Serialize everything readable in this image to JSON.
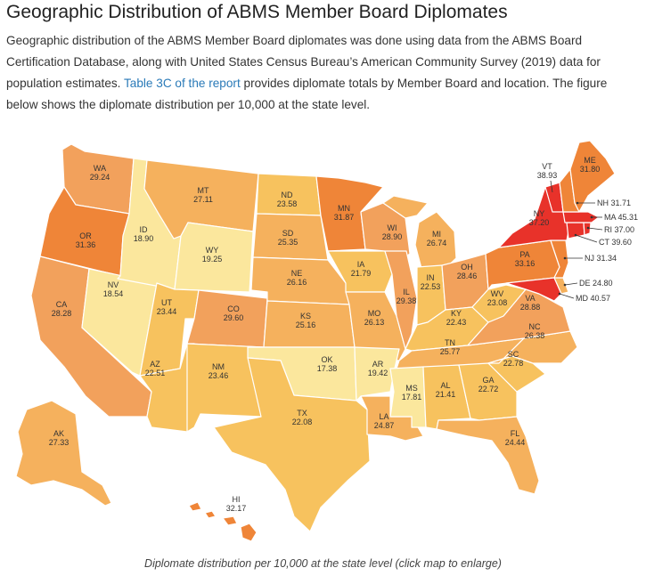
{
  "title": "Geographic Distribution of ABMS Member Board Diplomates",
  "intro": {
    "text_before_link": "Geographic distribution of the ABMS Member Board diplomates was done using data from the ABMS Board Certification Database, along with United States Census Bureau’s American Community Survey (2019) data for population estimates. ",
    "link_text": "Table 3C of the report",
    "text_after_link": " provides diplomate totals by Member Board and location. The figure below shows the diplomate distribution per 10,000 at the state level."
  },
  "caption": "Diplomate distribution per 10,000 at the state level (click map to enlarge)",
  "colors": {
    "very_high": "#e8322a",
    "high": "#ef8538",
    "mid_high": "#f2a15c",
    "mid": "#f5b15d",
    "mid_low": "#f7c25e",
    "low": "#fbe79d",
    "border": "#ffffff"
  },
  "states": {
    "WA": {
      "label": "WA",
      "value": "29.24"
    },
    "OR": {
      "label": "OR",
      "value": "31.36"
    },
    "CA": {
      "label": "CA",
      "value": "28.28"
    },
    "NV": {
      "label": "NV",
      "value": "18.54"
    },
    "ID": {
      "label": "ID",
      "value": "18.90"
    },
    "MT": {
      "label": "MT",
      "value": "27.11"
    },
    "WY": {
      "label": "WY",
      "value": "19.25"
    },
    "UT": {
      "label": "UT",
      "value": "23.44"
    },
    "AZ": {
      "label": "AZ",
      "value": "22.51"
    },
    "CO": {
      "label": "CO",
      "value": "29.60"
    },
    "NM": {
      "label": "NM",
      "value": "23.46"
    },
    "ND": {
      "label": "ND",
      "value": "23.58"
    },
    "SD": {
      "label": "SD",
      "value": "25.35"
    },
    "NE": {
      "label": "NE",
      "value": "26.16"
    },
    "KS": {
      "label": "KS",
      "value": "25.16"
    },
    "OK": {
      "label": "OK",
      "value": "17.38"
    },
    "TX": {
      "label": "TX",
      "value": "22.08"
    },
    "MN": {
      "label": "MN",
      "value": "31.87"
    },
    "IA": {
      "label": "IA",
      "value": "21.79"
    },
    "MO": {
      "label": "MO",
      "value": "26.13"
    },
    "AR": {
      "label": "AR",
      "value": "19.42"
    },
    "LA": {
      "label": "LA",
      "value": "24.87"
    },
    "WI": {
      "label": "WI",
      "value": "28.90"
    },
    "IL": {
      "label": "IL",
      "value": "29.38"
    },
    "MI": {
      "label": "MI",
      "value": "26.74"
    },
    "IN": {
      "label": "IN",
      "value": "22.53"
    },
    "OH": {
      "label": "OH",
      "value": "28.46"
    },
    "KY": {
      "label": "KY",
      "value": "22.43"
    },
    "TN": {
      "label": "TN",
      "value": "25.77"
    },
    "MS": {
      "label": "MS",
      "value": "17.81"
    },
    "AL": {
      "label": "AL",
      "value": "21.41"
    },
    "GA": {
      "label": "GA",
      "value": "22.72"
    },
    "FL": {
      "label": "FL",
      "value": "24.44"
    },
    "SC": {
      "label": "SC",
      "value": "22.78"
    },
    "NC": {
      "label": "NC",
      "value": "26.38"
    },
    "VA": {
      "label": "VA",
      "value": "28.88"
    },
    "WV": {
      "label": "WV",
      "value": "23.08"
    },
    "PA": {
      "label": "PA",
      "value": "33.16"
    },
    "NY": {
      "label": "NY",
      "value": "37.20"
    },
    "VT": {
      "label": "VT",
      "value": "38.93"
    },
    "ME": {
      "label": "ME",
      "value": "31.80"
    },
    "AK": {
      "label": "AK",
      "value": "27.33"
    },
    "HI": {
      "label": "HI",
      "value": "32.17"
    }
  },
  "callouts": {
    "NH": {
      "text": "NH 31.71"
    },
    "MA": {
      "text": "MA 45.31"
    },
    "RI": {
      "text": "RI 37.00"
    },
    "CT": {
      "text": "CT 39.60"
    },
    "NJ": {
      "text": "NJ 31.34"
    },
    "DE": {
      "text": "DE 24.80"
    },
    "MD": {
      "text": "MD 40.57"
    }
  }
}
